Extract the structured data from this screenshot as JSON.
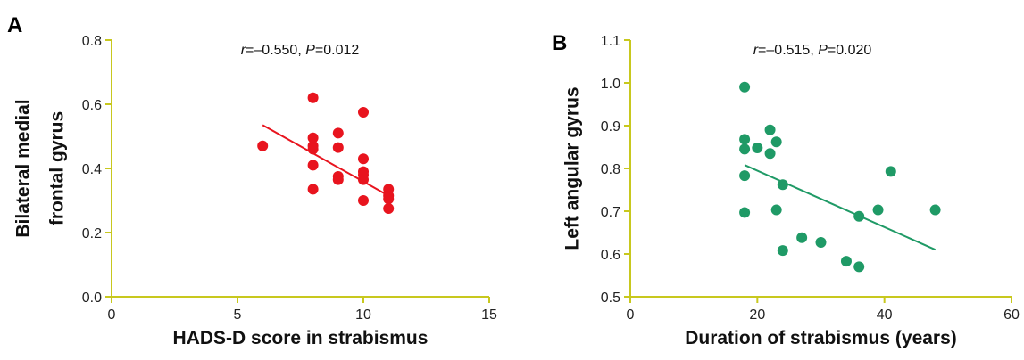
{
  "chart_data": [
    {
      "type": "scatter",
      "panel_label": "A",
      "xlabel": "HADS-D score in strabismus",
      "ylabel": [
        "Bilateral medial",
        "frontal gyrus"
      ],
      "xlim": [
        0,
        15
      ],
      "ylim": [
        0.0,
        0.8
      ],
      "xticks": [
        0,
        5,
        10,
        15
      ],
      "yticks": [
        "0.0",
        "0.2",
        "0.4",
        "0.6",
        "0.8"
      ],
      "color": "#e8141e",
      "annotation": {
        "r_symbol": "r",
        "r_value": "=–0.550, ",
        "p_symbol": "P",
        "p_value": "=0.012"
      },
      "points": [
        {
          "x": 6,
          "y": 0.47
        },
        {
          "x": 8,
          "y": 0.62
        },
        {
          "x": 8,
          "y": 0.495
        },
        {
          "x": 8,
          "y": 0.47
        },
        {
          "x": 8,
          "y": 0.46
        },
        {
          "x": 8,
          "y": 0.41
        },
        {
          "x": 8,
          "y": 0.335
        },
        {
          "x": 9,
          "y": 0.51
        },
        {
          "x": 9,
          "y": 0.465
        },
        {
          "x": 9,
          "y": 0.375
        },
        {
          "x": 9,
          "y": 0.365
        },
        {
          "x": 10,
          "y": 0.575
        },
        {
          "x": 10,
          "y": 0.43
        },
        {
          "x": 10,
          "y": 0.39
        },
        {
          "x": 10,
          "y": 0.38
        },
        {
          "x": 10,
          "y": 0.365
        },
        {
          "x": 10,
          "y": 0.3
        },
        {
          "x": 11,
          "y": 0.335
        },
        {
          "x": 11,
          "y": 0.315
        },
        {
          "x": 11,
          "y": 0.305
        },
        {
          "x": 11,
          "y": 0.275
        }
      ],
      "fit_line": {
        "x": [
          6,
          11
        ],
        "y": [
          0.535,
          0.315
        ]
      }
    },
    {
      "type": "scatter",
      "panel_label": "B",
      "xlabel": "Duration of strabismus (years)",
      "ylabel": [
        "Left angular gyrus"
      ],
      "xlim": [
        0,
        60
      ],
      "ylim": [
        0.5,
        1.1
      ],
      "xticks": [
        0,
        20,
        40,
        60
      ],
      "yticks": [
        "0.5",
        "0.6",
        "0.7",
        "0.8",
        "0.9",
        "1.0",
        "1.1"
      ],
      "color": "#1f9a66",
      "annotation": {
        "r_symbol": "r",
        "r_value": "=–0.515, ",
        "p_symbol": "P",
        "p_value": "=0.020"
      },
      "points": [
        {
          "x": 18,
          "y": 0.99
        },
        {
          "x": 18,
          "y": 0.868
        },
        {
          "x": 18,
          "y": 0.845
        },
        {
          "x": 18,
          "y": 0.783
        },
        {
          "x": 18,
          "y": 0.697
        },
        {
          "x": 20,
          "y": 0.848
        },
        {
          "x": 22,
          "y": 0.89
        },
        {
          "x": 22,
          "y": 0.835
        },
        {
          "x": 23,
          "y": 0.862
        },
        {
          "x": 23,
          "y": 0.703
        },
        {
          "x": 24,
          "y": 0.762
        },
        {
          "x": 24,
          "y": 0.608
        },
        {
          "x": 27,
          "y": 0.638
        },
        {
          "x": 30,
          "y": 0.627
        },
        {
          "x": 34,
          "y": 0.583
        },
        {
          "x": 36,
          "y": 0.688
        },
        {
          "x": 36,
          "y": 0.57
        },
        {
          "x": 39,
          "y": 0.703
        },
        {
          "x": 41,
          "y": 0.793
        },
        {
          "x": 48,
          "y": 0.703
        }
      ],
      "fit_line": {
        "x": [
          18,
          48
        ],
        "y": [
          0.808,
          0.61
        ]
      }
    }
  ]
}
